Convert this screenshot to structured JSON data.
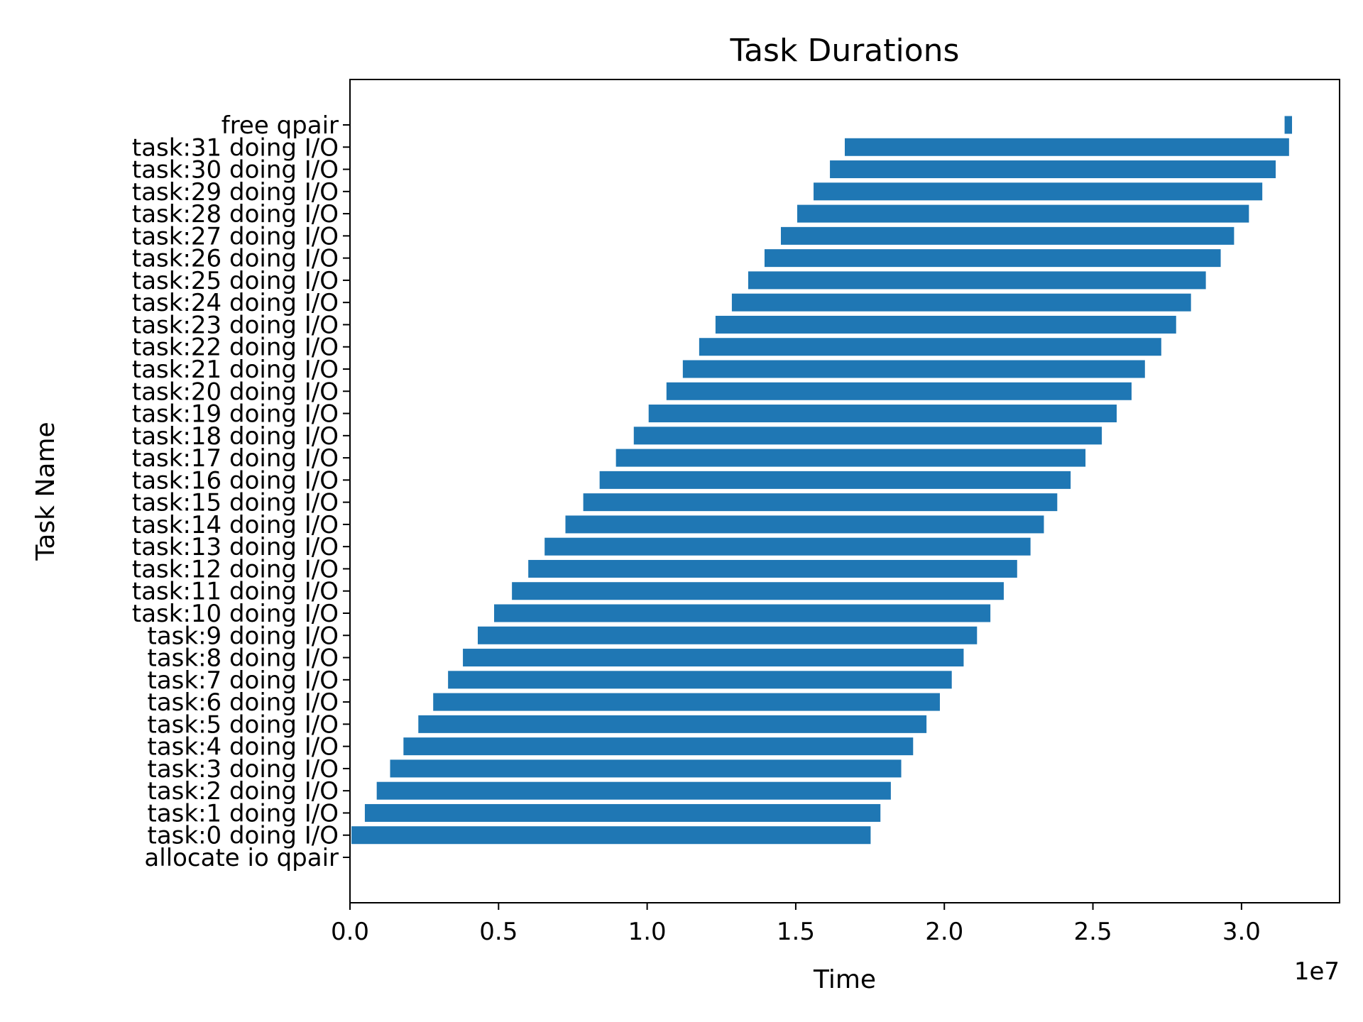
{
  "chart_data": {
    "type": "bar",
    "orientation": "horizontal",
    "title": "Task Durations",
    "xlabel": "Time",
    "ylabel": "Task Name",
    "x_scale_label": "1e7",
    "xlim": [
      0,
      3.33
    ],
    "x_units": "1e7",
    "x_ticks": [
      0.0,
      0.5,
      1.0,
      1.5,
      2.0,
      2.5,
      3.0
    ],
    "x_tick_labels": [
      "0.0",
      "0.5",
      "1.0",
      "1.5",
      "2.0",
      "2.5",
      "3.0"
    ],
    "color": "#1f77b4",
    "grid": false,
    "legend": "none",
    "tasks": [
      {
        "name": "allocate io qpair",
        "start": 0.0,
        "end": 0.002
      },
      {
        "name": "task:0 doing I/O",
        "start": 0.005,
        "end": 1.752
      },
      {
        "name": "task:1 doing I/O",
        "start": 0.05,
        "end": 1.785
      },
      {
        "name": "task:2 doing I/O",
        "start": 0.09,
        "end": 1.82
      },
      {
        "name": "task:3 doing I/O",
        "start": 0.135,
        "end": 1.855
      },
      {
        "name": "task:4 doing I/O",
        "start": 0.18,
        "end": 1.895
      },
      {
        "name": "task:5 doing I/O",
        "start": 0.23,
        "end": 1.94
      },
      {
        "name": "task:6 doing I/O",
        "start": 0.28,
        "end": 1.985
      },
      {
        "name": "task:7 doing I/O",
        "start": 0.33,
        "end": 2.025
      },
      {
        "name": "task:8 doing I/O",
        "start": 0.38,
        "end": 2.065
      },
      {
        "name": "task:9 doing I/O",
        "start": 0.43,
        "end": 2.11
      },
      {
        "name": "task:10 doing I/O",
        "start": 0.485,
        "end": 2.155
      },
      {
        "name": "task:11 doing I/O",
        "start": 0.545,
        "end": 2.2
      },
      {
        "name": "task:12 doing I/O",
        "start": 0.6,
        "end": 2.245
      },
      {
        "name": "task:13 doing I/O",
        "start": 0.655,
        "end": 2.29
      },
      {
        "name": "task:14 doing I/O",
        "start": 0.725,
        "end": 2.335
      },
      {
        "name": "task:15 doing I/O",
        "start": 0.785,
        "end": 2.38
      },
      {
        "name": "task:16 doing I/O",
        "start": 0.84,
        "end": 2.425
      },
      {
        "name": "task:17 doing I/O",
        "start": 0.895,
        "end": 2.475
      },
      {
        "name": "task:18 doing I/O",
        "start": 0.955,
        "end": 2.53
      },
      {
        "name": "task:19 doing I/O",
        "start": 1.005,
        "end": 2.58
      },
      {
        "name": "task:20 doing I/O",
        "start": 1.065,
        "end": 2.63
      },
      {
        "name": "task:21 doing I/O",
        "start": 1.12,
        "end": 2.675
      },
      {
        "name": "task:22 doing I/O",
        "start": 1.175,
        "end": 2.73
      },
      {
        "name": "task:23 doing I/O",
        "start": 1.23,
        "end": 2.78
      },
      {
        "name": "task:24 doing I/O",
        "start": 1.285,
        "end": 2.83
      },
      {
        "name": "task:25 doing I/O",
        "start": 1.34,
        "end": 2.88
      },
      {
        "name": "task:26 doing I/O",
        "start": 1.395,
        "end": 2.93
      },
      {
        "name": "task:27 doing I/O",
        "start": 1.45,
        "end": 2.975
      },
      {
        "name": "task:28 doing I/O",
        "start": 1.505,
        "end": 3.025
      },
      {
        "name": "task:29 doing I/O",
        "start": 1.56,
        "end": 3.07
      },
      {
        "name": "task:30 doing I/O",
        "start": 1.615,
        "end": 3.115
      },
      {
        "name": "task:31 doing I/O",
        "start": 1.665,
        "end": 3.16
      },
      {
        "name": "free qpair",
        "start": 3.145,
        "end": 3.17
      }
    ]
  }
}
